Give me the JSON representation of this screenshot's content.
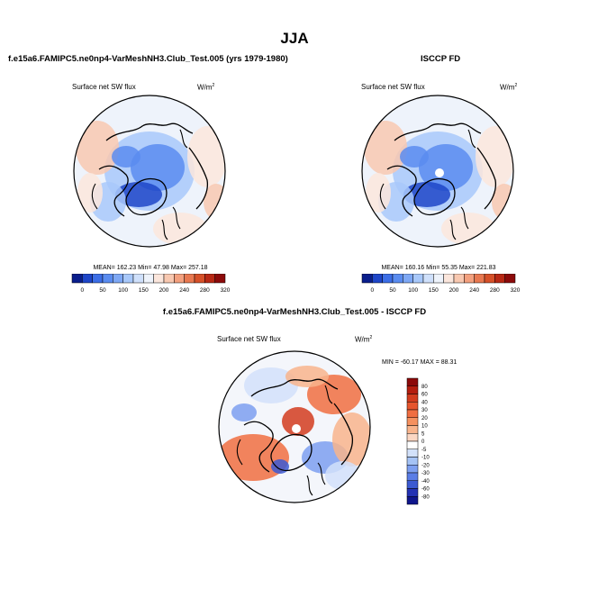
{
  "page": {
    "season_title": "JJA",
    "model_title": "f.e15a6.FAMIPC5.ne0np4-VarMeshNH3.Club_Test.005 (yrs 1979-1980)",
    "obs_title": "ISCCP FD",
    "diff_title": "f.e15a6.FAMIPC5.ne0np4-VarMeshNH3.Club_Test.005 - ISCCP FD"
  },
  "chart_data": [
    {
      "type": "heatmap",
      "projection": "north-polar-stereographic",
      "title": "f.e15a6.FAMIPC5.ne0np4-VarMeshNH3.Club_Test.005 (yrs 1979-1980)",
      "variable_label": "Surface net SW flux",
      "units_base": "W/m",
      "units_exp": "2",
      "stats": "MEAN= 162.23  Min= 47.98  Max= 257.18",
      "colorbar_ticks": [
        "0",
        "50",
        "100",
        "150",
        "200",
        "240",
        "280",
        "320"
      ],
      "colorbar_colors": [
        "#0a1e8c",
        "#1e46c8",
        "#3c6ee6",
        "#5a8cf0",
        "#7ea8f5",
        "#a8c8fa",
        "#cfe0fb",
        "#eef3fb",
        "#fbe6dc",
        "#f8c8b0",
        "#f3a07e",
        "#e87850",
        "#d65028",
        "#b82814",
        "#8c0a0a"
      ],
      "pole_missing": false
    },
    {
      "type": "heatmap",
      "projection": "north-polar-stereographic",
      "title": "ISCCP FD",
      "variable_label": "Surface net SW flux",
      "units_base": "W/m",
      "units_exp": "2",
      "stats": "MEAN= 160.16  Min= 55.35  Max= 221.83",
      "colorbar_ticks": [
        "0",
        "50",
        "100",
        "150",
        "200",
        "240",
        "280",
        "320"
      ],
      "colorbar_colors": [
        "#0a1e8c",
        "#1e46c8",
        "#3c6ee6",
        "#5a8cf0",
        "#7ea8f5",
        "#a8c8fa",
        "#cfe0fb",
        "#eef3fb",
        "#fbe6dc",
        "#f8c8b0",
        "#f3a07e",
        "#e87850",
        "#d65028",
        "#b82814",
        "#8c0a0a"
      ],
      "pole_missing": true
    },
    {
      "type": "heatmap",
      "projection": "north-polar-stereographic",
      "title": "f.e15a6.FAMIPC5.ne0np4-VarMeshNH3.Club_Test.005 - ISCCP FD",
      "variable_label": "Surface net SW flux",
      "units_base": "W/m",
      "units_exp": "2",
      "stats": "MIN = -60.17 MAX =  88.31",
      "colorbar_ticks": [
        "80",
        "60",
        "40",
        "30",
        "20",
        "10",
        "5",
        "0",
        "-5",
        "-10",
        "-20",
        "-30",
        "-40",
        "-60",
        "-80"
      ],
      "colorbar_colors": [
        "#8c0a0a",
        "#b41e0f",
        "#d23c1e",
        "#e6552d",
        "#f06e41",
        "#f5915f",
        "#f8b48c",
        "#fbd7c3",
        "#ffffff",
        "#d2e1fa",
        "#a5c3f5",
        "#7d9ff0",
        "#5a7de6",
        "#3c5ad2",
        "#2332b4",
        "#0f168c"
      ],
      "pole_missing": true
    }
  ]
}
